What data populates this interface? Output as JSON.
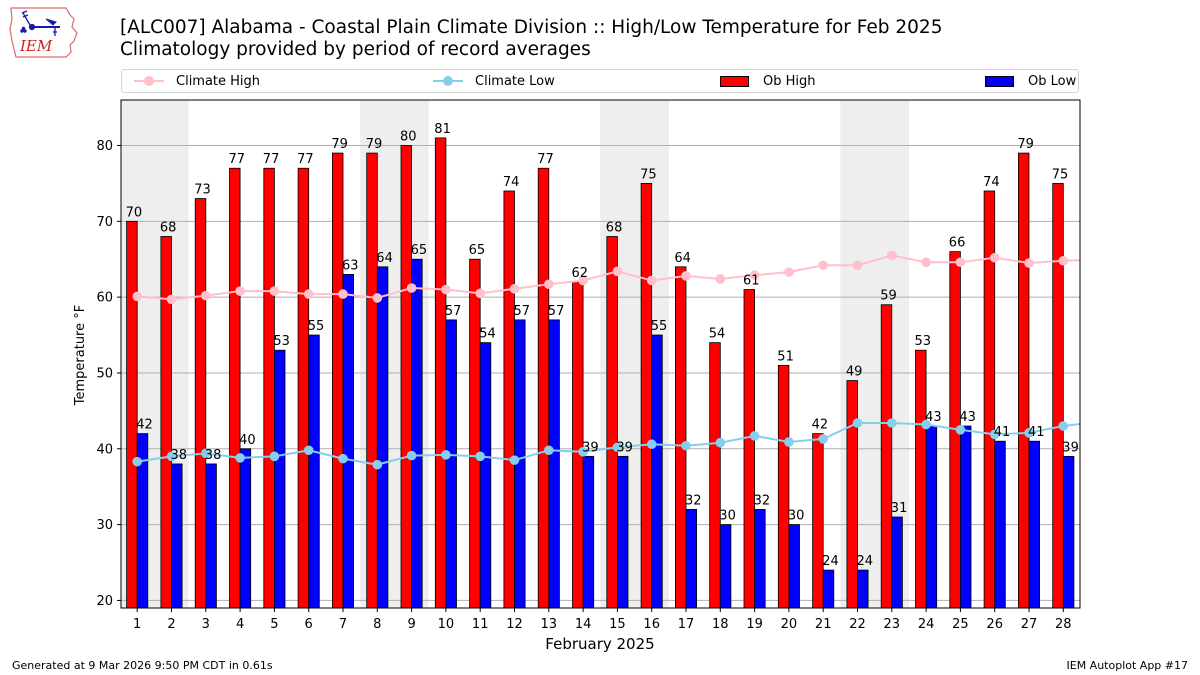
{
  "header": {
    "logo_text": "IEM",
    "title_line1": "[ALC007] Alabama - Coastal Plain Climate Division :: High/Low Temperature for Feb 2025",
    "title_line2": "Climatology provided by period of record averages"
  },
  "legend": {
    "items": [
      {
        "label": "Climate High",
        "kind": "line",
        "color": "#ffc0cb"
      },
      {
        "label": "Climate Low",
        "kind": "line",
        "color": "#87ceeb"
      },
      {
        "label": "Ob High",
        "kind": "bar",
        "color": "#ff0000"
      },
      {
        "label": "Ob Low",
        "kind": "bar",
        "color": "#0000ff"
      }
    ]
  },
  "footer": {
    "left": "Generated at 9 Mar 2026 9:50 PM CDT in 0.61s",
    "right": "IEM Autoplot App #17"
  },
  "chart_data": {
    "type": "bar",
    "title": "[ALC007] Alabama - Coastal Plain Climate Division :: High/Low Temperature for Feb 2025",
    "subtitle": "Climatology provided by period of record averages",
    "xlabel": "February 2025",
    "ylabel": "Temperature °F",
    "ylim": [
      19,
      86
    ],
    "yticks": [
      20,
      30,
      40,
      50,
      60,
      70,
      80
    ],
    "grid": true,
    "legend_position": "top",
    "categories": [
      "1",
      "2",
      "3",
      "4",
      "5",
      "6",
      "7",
      "8",
      "9",
      "10",
      "11",
      "12",
      "13",
      "14",
      "15",
      "16",
      "17",
      "18",
      "19",
      "20",
      "21",
      "22",
      "23",
      "24",
      "25",
      "26",
      "27",
      "28"
    ],
    "weekend_shading_days": [
      [
        1,
        2
      ],
      [
        8,
        9
      ],
      [
        15,
        16
      ],
      [
        22,
        23
      ]
    ],
    "shading_color": "#eeeeee",
    "series": [
      {
        "name": "Ob High",
        "type": "bar",
        "color": "#ff0000",
        "values": [
          70,
          68,
          73,
          77,
          77,
          77,
          79,
          79,
          80,
          81,
          65,
          74,
          77,
          62,
          68,
          75,
          64,
          54,
          61,
          51,
          42,
          49,
          59,
          53,
          66,
          74,
          79,
          75
        ]
      },
      {
        "name": "Ob Low",
        "type": "bar",
        "color": "#0000ff",
        "values": [
          42,
          38,
          38,
          40,
          53,
          55,
          63,
          64,
          65,
          57,
          54,
          57,
          57,
          39,
          39,
          55,
          32,
          30,
          32,
          30,
          24,
          24,
          31,
          43,
          43,
          41,
          41,
          39
        ]
      },
      {
        "name": "Climate High",
        "type": "line",
        "color": "#ffc0cb",
        "values": [
          60.1,
          59.7,
          60.2,
          60.8,
          60.8,
          60.4,
          60.4,
          59.9,
          61.2,
          61.0,
          60.5,
          61.1,
          61.7,
          62.2,
          63.4,
          62.2,
          62.8,
          62.4,
          62.9,
          63.3,
          64.2,
          64.2,
          65.5,
          64.6,
          64.6,
          65.2,
          64.5,
          64.8
        ]
      },
      {
        "name": "Climate Low",
        "type": "line",
        "color": "#87ceeb",
        "values": [
          38.3,
          39.0,
          39.4,
          38.8,
          39.0,
          39.8,
          38.7,
          37.9,
          39.1,
          39.2,
          39.0,
          38.5,
          39.8,
          39.6,
          40.2,
          40.6,
          40.4,
          40.8,
          41.7,
          40.9,
          41.3,
          43.4,
          43.4,
          43.2,
          42.5,
          41.9,
          42.1,
          43.0
        ]
      }
    ]
  }
}
